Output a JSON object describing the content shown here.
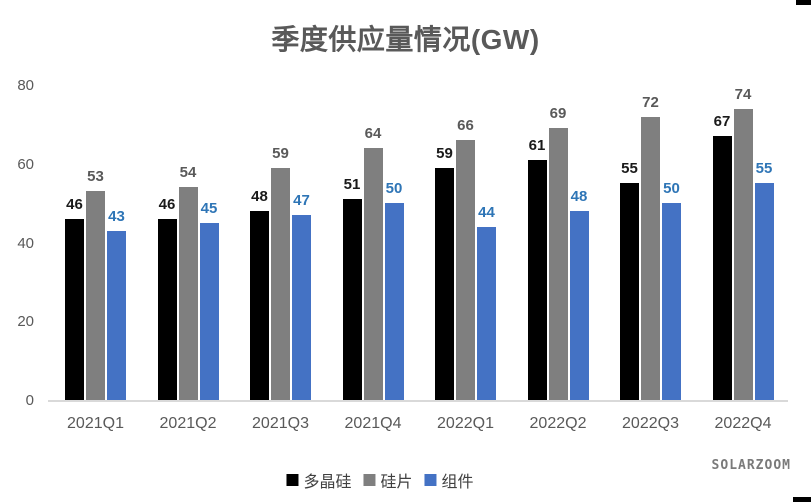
{
  "title": "季度供应量情况(GW)",
  "watermark": "SOLARZOOM",
  "colors": {
    "title_text": "#595959",
    "axis_text": "#595959",
    "axis_line": "#d9d9d9",
    "legend_text": "#404040",
    "watermark_text": "#7a7a7a",
    "corner_marks": "#000000"
  },
  "chart_data": {
    "type": "bar",
    "title": "季度供应量情况(GW)",
    "categories": [
      "2021Q1",
      "2021Q2",
      "2021Q3",
      "2021Q4",
      "2022Q1",
      "2022Q2",
      "2022Q3",
      "2022Q4"
    ],
    "series": [
      {
        "name": "多晶硅",
        "color": "#000000",
        "label_color": "#1a1a1a",
        "values": [
          46,
          46,
          48,
          51,
          59,
          61,
          55,
          67
        ]
      },
      {
        "name": "硅片",
        "color": "#7f7f7f",
        "label_color": "#595959",
        "values": [
          53,
          54,
          59,
          64,
          66,
          69,
          72,
          74
        ]
      },
      {
        "name": "组件",
        "color": "#4472c4",
        "label_color": "#2e75b6",
        "values": [
          43,
          45,
          47,
          50,
          44,
          48,
          50,
          55
        ]
      }
    ],
    "y_ticks": [
      0,
      20,
      40,
      60,
      80
    ],
    "ylim": [
      0,
      80
    ],
    "xlabel": "",
    "ylabel": "",
    "grid": false,
    "data_labels": true,
    "legend_position": "bottom"
  }
}
